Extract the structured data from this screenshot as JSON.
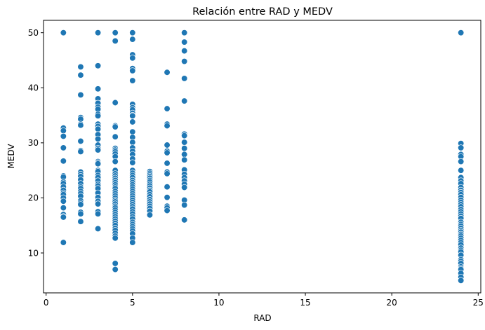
{
  "chart_data": {
    "type": "scatter",
    "title": "Relación entre RAD y MEDV",
    "xlabel": "RAD",
    "ylabel": "MEDV",
    "xlim": [
      -0.15,
      25.15
    ],
    "ylim": [
      2.75,
      52.25
    ],
    "xticks": [
      0,
      5,
      10,
      15,
      20,
      25
    ],
    "yticks": [
      10,
      20,
      30,
      40,
      50
    ],
    "xtick_labels": [
      "0",
      "5",
      "10",
      "15",
      "20",
      "25"
    ],
    "ytick_labels": [
      "10",
      "20",
      "30",
      "40",
      "50"
    ],
    "grid": false,
    "marker_color": "#1f77b4",
    "series": [
      {
        "x_value": 1,
        "y": [
          50.0,
          32.7,
          32.2,
          31.2,
          29.1,
          26.7,
          24.0,
          23.8,
          22.9,
          22.6,
          22.0,
          21.4,
          20.9,
          20.6,
          20.0,
          19.4,
          18.2,
          17.0,
          16.6,
          16.5,
          11.9
        ]
      },
      {
        "x_value": 2,
        "y": [
          43.8,
          42.3,
          38.7,
          34.6,
          34.3,
          33.4,
          33.2,
          30.3,
          28.6,
          28.4,
          24.7,
          24.3,
          23.9,
          23.3,
          22.6,
          22.0,
          21.7,
          21.2,
          20.8,
          20.3,
          19.5,
          19.1,
          18.8,
          17.4,
          17.1,
          15.7
        ]
      },
      {
        "x_value": 3,
        "y": [
          50.0,
          44.0,
          39.8,
          38.0,
          37.2,
          36.5,
          36.1,
          35.2,
          34.9,
          33.4,
          33.0,
          32.5,
          31.5,
          30.7,
          29.6,
          29.0,
          28.7,
          26.6,
          26.4,
          26.2,
          25.0,
          24.8,
          24.1,
          23.7,
          23.1,
          22.5,
          22.2,
          21.7,
          20.9,
          20.1,
          19.4,
          18.9,
          17.5,
          17.1,
          14.4
        ]
      },
      {
        "x_value": 4,
        "y": [
          50.0,
          48.5,
          37.3,
          33.1,
          32.9,
          31.1,
          29.0,
          28.7,
          28.4,
          28.0,
          27.5,
          26.6,
          25.0,
          24.4,
          24.0,
          23.6,
          23.2,
          22.8,
          22.4,
          22.0,
          21.7,
          21.2,
          20.8,
          20.4,
          20.0,
          19.6,
          19.3,
          18.9,
          18.5,
          18.2,
          17.8,
          17.4,
          17.0,
          16.6,
          16.2,
          15.8,
          15.4,
          15.0,
          14.5,
          14.1,
          13.6,
          13.1,
          12.7,
          8.1,
          7.0
        ]
      },
      {
        "x_value": 5,
        "y": [
          50.0,
          48.8,
          46.0,
          45.4,
          43.5,
          43.1,
          41.3,
          37.0,
          36.4,
          36.0,
          35.4,
          35.0,
          34.9,
          33.8,
          32.0,
          31.0,
          30.1,
          29.1,
          28.5,
          27.9,
          27.1,
          26.4,
          25.0,
          24.5,
          24.1,
          23.7,
          23.2,
          22.8,
          22.4,
          22.0,
          21.6,
          21.2,
          20.8,
          20.4,
          20.0,
          19.6,
          19.2,
          18.8,
          18.4,
          18.0,
          17.5,
          17.1,
          16.6,
          16.2,
          15.6,
          15.2,
          14.8,
          14.4,
          14.0,
          13.5,
          12.7,
          11.9
        ]
      },
      {
        "x_value": 6,
        "y": [
          24.8,
          24.5,
          24.2,
          23.9,
          23.6,
          23.2,
          22.9,
          22.5,
          22.2,
          21.8,
          21.4,
          21.1,
          20.6,
          20.2,
          19.7,
          19.3,
          18.9,
          18.5,
          18.1,
          17.6,
          16.9
        ]
      },
      {
        "x_value": 7,
        "y": [
          42.8,
          36.2,
          33.4,
          33.1,
          29.6,
          28.5,
          28.2,
          26.3,
          24.7,
          24.4,
          22.0,
          20.1,
          18.5,
          18.2,
          17.7
        ]
      },
      {
        "x_value": 8,
        "y": [
          50.0,
          48.3,
          46.7,
          44.8,
          41.7,
          37.6,
          31.6,
          31.3,
          30.1,
          29.0,
          27.9,
          26.9,
          25.1,
          24.3,
          23.7,
          23.1,
          22.5,
          21.9,
          19.6,
          18.7,
          16.0
        ]
      },
      {
        "x_value": 24,
        "y": [
          50.0,
          29.9,
          29.1,
          27.9,
          27.5,
          26.6,
          25.0,
          23.7,
          23.1,
          22.6,
          21.9,
          21.4,
          21.0,
          20.6,
          20.1,
          19.6,
          19.2,
          18.8,
          18.4,
          17.9,
          17.5,
          17.1,
          16.7,
          16.3,
          15.6,
          15.2,
          14.9,
          14.5,
          14.1,
          13.8,
          13.4,
          13.1,
          12.7,
          12.3,
          11.9,
          11.5,
          10.9,
          10.5,
          10.2,
          9.6,
          8.8,
          8.5,
          8.1,
          7.5,
          7.2,
          7.0,
          6.3,
          5.6,
          5.0
        ]
      }
    ]
  }
}
